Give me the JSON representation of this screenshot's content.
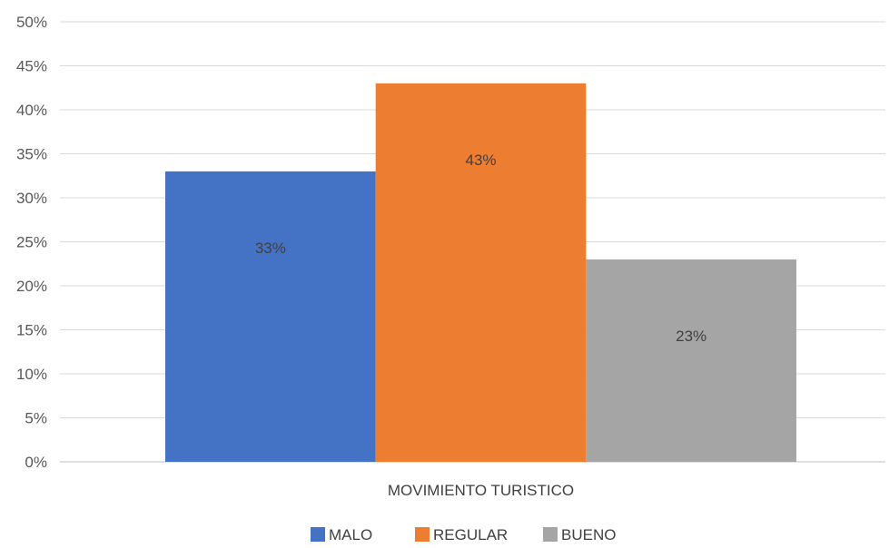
{
  "chart_data": {
    "type": "bar",
    "categories": [
      "MOVIMIENTO TURISTICO"
    ],
    "series": [
      {
        "name": "MALO",
        "values": [
          0.33
        ],
        "label": "33%",
        "color": "#4472C4"
      },
      {
        "name": "REGULAR",
        "values": [
          0.43
        ],
        "label": "43%",
        "color": "#ED7D31"
      },
      {
        "name": "BUENO",
        "values": [
          0.23
        ],
        "label": "23%",
        "color": "#A5A5A5"
      }
    ],
    "title": "",
    "xlabel": "",
    "ylabel": "",
    "ylim": [
      0,
      0.5
    ],
    "yticks": [
      {
        "value": 0,
        "label": "0%"
      },
      {
        "value": 0.05,
        "label": "5%"
      },
      {
        "value": 0.1,
        "label": "10%"
      },
      {
        "value": 0.15,
        "label": "15%"
      },
      {
        "value": 0.2,
        "label": "20%"
      },
      {
        "value": 0.25,
        "label": "25%"
      },
      {
        "value": 0.3,
        "label": "30%"
      },
      {
        "value": 0.35,
        "label": "35%"
      },
      {
        "value": 0.4,
        "label": "40%"
      },
      {
        "value": 0.45,
        "label": "45%"
      },
      {
        "value": 0.5,
        "label": "50%"
      }
    ],
    "grid": true,
    "legend_position": "bottom"
  }
}
